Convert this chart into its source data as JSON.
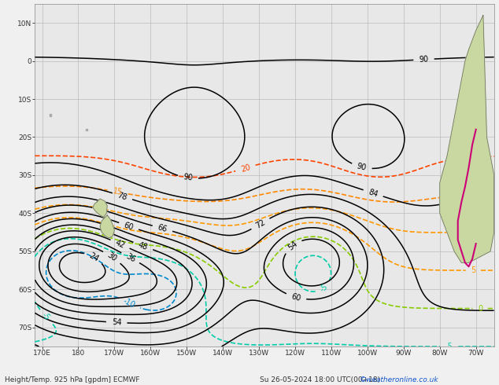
{
  "bg_color": "#f0f0f0",
  "ocean_color": "#e8e8e8",
  "land_color": "#c8d8a0",
  "grid_color": "#bbbbbb",
  "bottom_text": "Height/Temp. 925 hPa [gpdm] ECMWF",
  "bottom_date": "Su 26-05-2024 18:00 UTC(00+18)",
  "credit": "©weatheronline.co.uk",
  "lon_min": -192,
  "lon_max": -65,
  "lat_min": -75,
  "lat_max": 15,
  "h_levels": [
    24,
    30,
    36,
    42,
    48,
    54,
    60,
    66,
    72,
    78,
    84,
    90
  ],
  "lon_ticks": [
    -190,
    -180,
    -170,
    -160,
    -150,
    -140,
    -130,
    -120,
    -110,
    -100,
    -90,
    -80,
    -70
  ],
  "lon_labels": [
    "170E",
    "180",
    "170W",
    "160W",
    "150W",
    "140W",
    "130W",
    "120W",
    "110W",
    "100W",
    "90W",
    "80W",
    "70W"
  ],
  "lat_ticks": [
    -70,
    -60,
    -50,
    -40,
    -30,
    -20,
    -10,
    0,
    10
  ],
  "lat_labels": [
    "70S",
    "60S",
    "50S",
    "40S",
    "30S",
    "20S",
    "10S",
    "0",
    "10N"
  ]
}
